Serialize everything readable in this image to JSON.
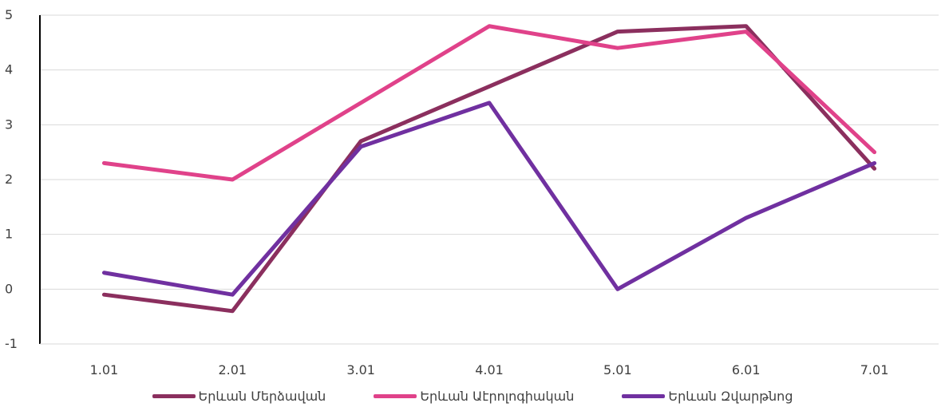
{
  "chart_data": {
    "type": "line",
    "categories": [
      "1.01",
      "2.01",
      "3.01",
      "4.01",
      "5.01",
      "6.01",
      "7.01"
    ],
    "ylim": [
      -1,
      5
    ],
    "yticks": [
      -1,
      0,
      1,
      2,
      3,
      4,
      5
    ],
    "grid": true,
    "legend_position": "bottom",
    "series": [
      {
        "name": "Երևան Մերձավան",
        "color": "#8B2F5E",
        "values": [
          -0.1,
          -0.4,
          2.7,
          3.7,
          4.7,
          4.8,
          2.2
        ]
      },
      {
        "name": "Երևան Աէրոլոգիական",
        "color": "#E0428A",
        "values": [
          2.3,
          2.0,
          3.4,
          4.8,
          4.4,
          4.7,
          2.5
        ]
      },
      {
        "name": "Երևան Զվարթնոց",
        "color": "#7030A0",
        "values": [
          0.3,
          -0.1,
          2.6,
          3.4,
          0.0,
          1.3,
          2.3
        ]
      }
    ]
  }
}
